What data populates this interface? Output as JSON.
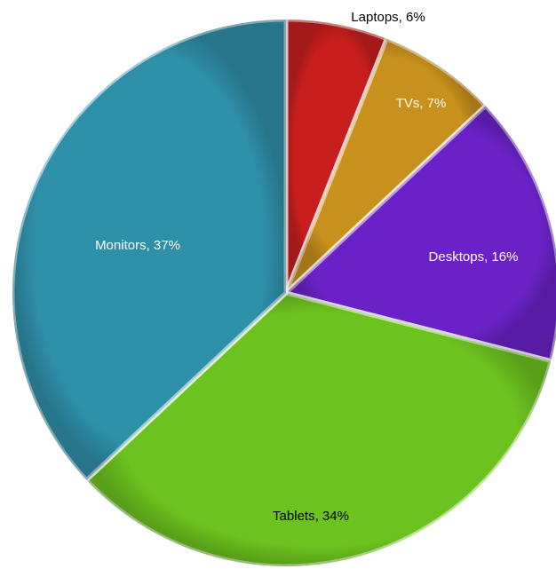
{
  "chart_data": {
    "type": "pie",
    "categories": [
      "Laptops",
      "TVs",
      "Desktops",
      "Tablets",
      "Monitors"
    ],
    "values": [
      6,
      7,
      16,
      34,
      37
    ],
    "value_labels": [
      "Laptops, 6%",
      "TVs, 7%",
      "Desktops, 16%",
      "Tablets, 34%",
      "Monitors, 37%"
    ],
    "colors": [
      "#c81e1e",
      "#c8901c",
      "#6a22c8",
      "#6cc21e",
      "#2e8fa8"
    ]
  }
}
